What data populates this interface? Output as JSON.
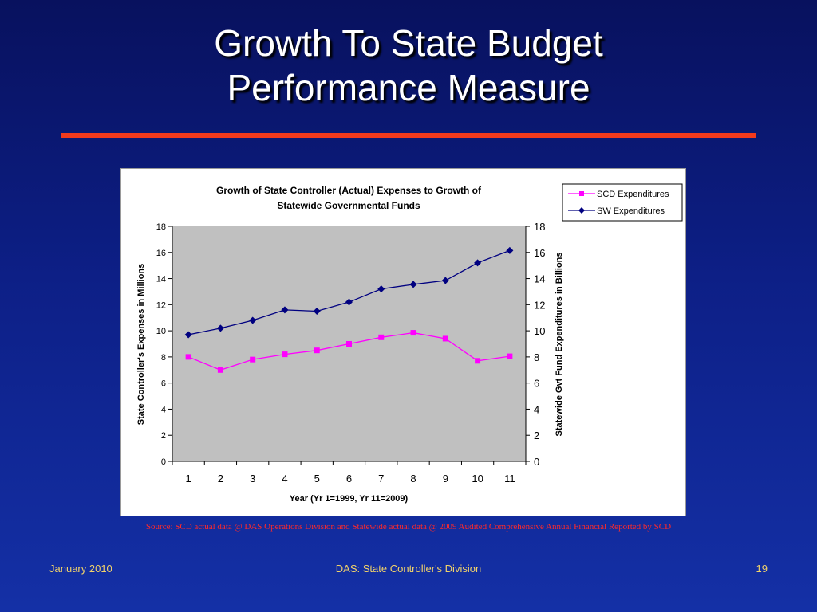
{
  "slide": {
    "title_line1": "Growth To State Budget",
    "title_line2": "Performance Measure",
    "source": "Source: SCD actual data @ DAS Operations Division and Statewide actual data @ 2009 Audited Comprehensive Annual Financial Reported by SCD",
    "footer_left": "January 2010",
    "footer_center": "DAS:  State Controller's Division",
    "footer_right": "19"
  },
  "colors": {
    "scd": "#ff00ff",
    "sw": "#000080",
    "plot_bg": "#c0c0c0",
    "title_rule": "#f23a1c"
  },
  "chart_data": {
    "type": "line",
    "title_line1": "Growth of State Controller (Actual) Expenses to Growth of",
    "title_line2": "Statewide Governmental Funds",
    "xlabel": "Year   (Yr 1=1999, Yr 11=2009)",
    "ylabel": "State Controller's Expenses in Millions",
    "y2label": "Statewide Gvt Fund Expenditures in Billions",
    "categories": [
      "1",
      "2",
      "3",
      "4",
      "5",
      "6",
      "7",
      "8",
      "9",
      "10",
      "11"
    ],
    "ylim": [
      0,
      18
    ],
    "y2lim": [
      0,
      18
    ],
    "yticks": [
      0,
      2,
      4,
      6,
      8,
      10,
      12,
      14,
      16,
      18
    ],
    "grid": false,
    "legend": "top-right",
    "series": [
      {
        "name": "SCD Expenditures",
        "marker": "square",
        "axis": "left",
        "values": [
          8.0,
          7.0,
          7.8,
          8.2,
          8.5,
          9.0,
          9.5,
          9.85,
          9.4,
          7.7,
          8.05
        ]
      },
      {
        "name": "SW Expenditures",
        "marker": "diamond",
        "axis": "right",
        "values": [
          9.7,
          10.2,
          10.8,
          11.6,
          11.5,
          12.2,
          13.2,
          13.55,
          13.85,
          15.2,
          16.15
        ]
      }
    ]
  }
}
